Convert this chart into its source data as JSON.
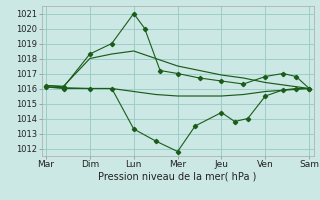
{
  "background_color": "#cce8e4",
  "grid_color": "#9ecec8",
  "line_color": "#1a5c1a",
  "title": "Pression niveau de la mer( hPa )",
  "ylim": [
    1011.5,
    1021.5
  ],
  "yticks": [
    1012,
    1013,
    1014,
    1015,
    1016,
    1017,
    1018,
    1019,
    1020,
    1021
  ],
  "x_labels": [
    "Mar",
    "Dim",
    "Lun",
    "Mer",
    "Jeu",
    "Ven",
    "Sam"
  ],
  "x_positions": [
    0,
    1,
    2,
    3,
    4,
    5,
    6
  ],
  "series": [
    {
      "name": "max_jagged",
      "x": [
        0,
        0.4,
        1.0,
        1.5,
        2.0,
        2.25,
        2.6,
        3.0,
        3.5,
        4.0,
        4.5,
        5.0,
        5.4,
        5.7,
        6.0
      ],
      "y": [
        1016.2,
        1016.1,
        1018.3,
        1019.0,
        1021.0,
        1020.0,
        1017.2,
        1017.0,
        1016.7,
        1016.5,
        1016.3,
        1016.8,
        1017.0,
        1016.8,
        1016.0
      ]
    },
    {
      "name": "min_jagged",
      "x": [
        0,
        0.4,
        1.0,
        1.5,
        2.0,
        2.5,
        3.0,
        3.4,
        4.0,
        4.3,
        4.6,
        5.0,
        5.4,
        5.7,
        6.0
      ],
      "y": [
        1016.1,
        1016.0,
        1016.0,
        1016.0,
        1013.3,
        1012.5,
        1011.8,
        1013.5,
        1014.4,
        1013.8,
        1014.0,
        1015.5,
        1015.9,
        1016.0,
        1016.0
      ]
    },
    {
      "name": "mean_upper",
      "x": [
        0,
        0.4,
        1.0,
        1.5,
        2.0,
        2.5,
        3.0,
        3.5,
        4.0,
        4.5,
        5.0,
        5.5,
        6.0
      ],
      "y": [
        1016.2,
        1016.15,
        1018.0,
        1018.3,
        1018.5,
        1018.0,
        1017.5,
        1017.2,
        1016.9,
        1016.7,
        1016.4,
        1016.2,
        1016.0
      ]
    },
    {
      "name": "mean_lower",
      "x": [
        0,
        0.4,
        1.0,
        1.5,
        2.0,
        2.5,
        3.0,
        3.5,
        4.0,
        4.5,
        5.0,
        5.5,
        6.0
      ],
      "y": [
        1016.1,
        1016.05,
        1016.0,
        1016.0,
        1015.8,
        1015.6,
        1015.5,
        1015.5,
        1015.5,
        1015.6,
        1015.8,
        1015.9,
        1016.0
      ]
    }
  ]
}
